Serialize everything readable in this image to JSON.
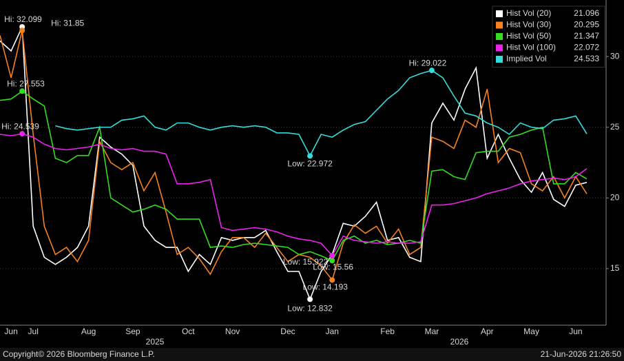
{
  "chart_data": {
    "type": "line",
    "categories": [
      null,
      "Jun",
      null,
      "Jul",
      null,
      null,
      null,
      null,
      "Aug",
      null,
      null,
      null,
      "Sep",
      null,
      null,
      null,
      null,
      "Oct",
      null,
      null,
      null,
      "Nov",
      null,
      null,
      null,
      null,
      "Dec",
      null,
      null,
      null,
      "Jan",
      null,
      null,
      null,
      null,
      "Feb",
      null,
      null,
      null,
      "Mar",
      null,
      null,
      null,
      null,
      "Apr",
      null,
      null,
      null,
      "May",
      null,
      null,
      null,
      "Jun",
      null
    ],
    "x_group_labels": [
      "2025",
      "2026"
    ],
    "ylim": [
      11,
      34
    ],
    "yticks": [
      15,
      20,
      25,
      30
    ],
    "grid": true,
    "legend": "top-right",
    "series": [
      {
        "name": "Hist Vol (20)",
        "color": "#ffffff",
        "values": [
          31.1,
          30.4,
          32.099,
          18,
          15.8,
          15.3,
          15.8,
          16.5,
          18,
          24.3,
          23.6,
          23.1,
          22.3,
          18,
          17,
          16.5,
          16.5,
          14.8,
          16,
          15.3,
          17.2,
          17,
          17.2,
          17.2,
          17.7,
          16.2,
          14.8,
          14.8,
          12.832,
          14.8,
          16,
          18.2,
          18,
          18.7,
          19.7,
          17,
          17.2,
          15.8,
          15.5,
          25.3,
          26.7,
          25.5,
          27.7,
          29.2,
          22.8,
          24.5,
          22.8,
          21.3,
          20.4,
          21.8,
          19.9,
          19.4,
          20.9,
          21.096
        ],
        "annotations": [
          {
            "text": "Hi: 32.099",
            "index": 2
          },
          {
            "text": "Low: 12.832",
            "index": 28
          }
        ]
      },
      {
        "name": "Hist Vol (30)",
        "color": "#f5821f",
        "values": [
          31.5,
          28.5,
          31.85,
          24.5,
          18,
          16,
          16.5,
          15.5,
          17,
          24,
          22.5,
          22,
          22.5,
          20.5,
          21.8,
          19,
          16,
          16.5,
          15.7,
          14.6,
          16.2,
          17.2,
          17.2,
          16.5,
          17.5,
          16.5,
          15.5,
          16,
          15.8,
          15.2,
          14.193,
          16.8,
          18.1,
          17.5,
          18,
          16.8,
          17.8,
          16,
          16.5,
          24.3,
          24,
          23.5,
          25.5,
          25,
          27.7,
          22.5,
          23.5,
          23.2,
          21,
          20.5,
          21.5,
          20,
          21.5,
          20.295
        ],
        "annotations": [
          {
            "text": "Hi: 31.85",
            "index": 2
          },
          {
            "text": "Low: 14.193",
            "index": 30
          }
        ]
      },
      {
        "name": "Hist Vol (50)",
        "color": "#33dd22",
        "values": [
          26.9,
          27,
          27.553,
          27,
          26.5,
          22.8,
          22.5,
          23,
          23,
          25,
          20,
          19.5,
          19,
          19.2,
          19.5,
          19.2,
          18.5,
          18.5,
          18.5,
          16.5,
          16.6,
          16.5,
          16.7,
          16.8,
          16.7,
          16.6,
          16.5,
          16,
          16.2,
          15.9,
          15.56,
          17,
          17.3,
          16.8,
          17,
          16.7,
          16.8,
          17,
          16.8,
          21.9,
          22,
          21.5,
          21.3,
          23.2,
          23.3,
          23.3,
          24.3,
          24.5,
          24.8,
          25,
          21,
          21,
          21.8,
          21.347
        ],
        "annotations": [
          {
            "text": "Hi: 27.553",
            "index": 2
          },
          {
            "text": "Low: 15.56",
            "index": 30
          }
        ]
      },
      {
        "name": "Hist Vol (100)",
        "color": "#ee22ee",
        "values": [
          24.5,
          24.4,
          24.539,
          24.3,
          23.8,
          23.5,
          23.4,
          23.5,
          23.6,
          23.8,
          23.5,
          23.4,
          23.5,
          23.3,
          23.3,
          23.1,
          21,
          21,
          21.1,
          21.3,
          17.9,
          17.7,
          17.8,
          17.9,
          17.8,
          17.6,
          17.3,
          17.1,
          17,
          16.8,
          15.922,
          17.3,
          17,
          16.9,
          16.8,
          16.9,
          16.8,
          16.8,
          16.9,
          19.5,
          19.5,
          19.6,
          19.8,
          20,
          20.3,
          20.5,
          20.7,
          21,
          21.2,
          21.3,
          21.4,
          21.3,
          21.5,
          22.072
        ],
        "annotations": [
          {
            "text": "Hi: 24.539",
            "index": 2
          },
          {
            "text": "Low: 15.922",
            "index": 30
          }
        ]
      },
      {
        "name": "Implied Vol",
        "color": "#33dddd",
        "values": [
          null,
          null,
          null,
          null,
          null,
          25.1,
          24.9,
          24.8,
          24.9,
          25,
          25,
          25.5,
          25.6,
          25.8,
          25,
          24.8,
          25.3,
          25.3,
          25,
          24.8,
          25,
          25.1,
          25,
          25.1,
          25,
          24.6,
          24.6,
          24.5,
          22.972,
          24.5,
          24.3,
          24.8,
          25.2,
          25.4,
          26.2,
          27,
          27.6,
          28.5,
          28.8,
          29.022,
          28.5,
          27.2,
          26,
          25.8,
          25.3,
          25,
          24.5,
          25.3,
          25,
          24.9,
          25.5,
          25.6,
          25.8,
          24.533
        ],
        "annotations": [
          {
            "text": "Hi: 29.022",
            "index": 39
          },
          {
            "text": "Low: 22.972",
            "index": 28
          }
        ]
      }
    ],
    "footer_left": "Copyright© 2026 Bloomberg Finance L.P.",
    "footer_right": "21-Jun-2026 21:26:50"
  }
}
